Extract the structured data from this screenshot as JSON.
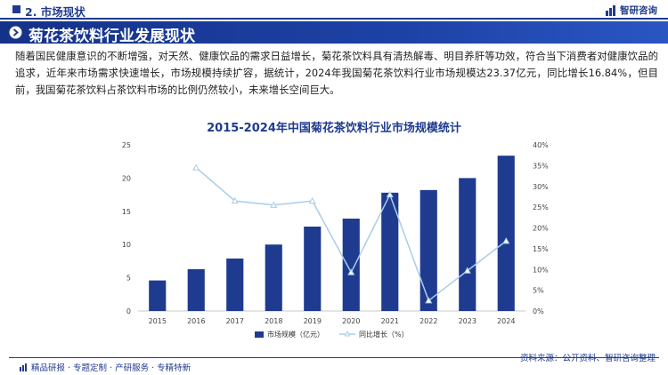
{
  "header": {
    "section": "2. 市场现状",
    "logo_text": "智研咨询"
  },
  "banner": {
    "title": "菊花茶饮料行业发展现状"
  },
  "paragraph": "随着国民健康意识的不断增强，对天然、健康饮品的需求日益增长，菊花茶饮料具有清热解毒、明目养肝等功效，符合当下消费者对健康饮品的追求，近年来市场需求快速增长，市场规模持续扩容，据统计，2024年我国菊花茶饮料行业市场规模达23.37亿元，同比增长16.84%，但目前，我国菊花茶饮料占茶饮料市场的比例仍然较小，未来增长空间巨大。",
  "chart_data": {
    "type": "bar",
    "title": "2015-2024年中国菊花茶饮料行业市场规模统计",
    "categories": [
      "2015",
      "2016",
      "2017",
      "2018",
      "2019",
      "2020",
      "2021",
      "2022",
      "2023",
      "2024"
    ],
    "series": [
      {
        "name": "市场规模（亿元）",
        "type": "bar",
        "axis": "left",
        "values": [
          4.6,
          6.3,
          7.9,
          10.0,
          12.7,
          13.9,
          17.8,
          18.2,
          20.0,
          23.37
        ]
      },
      {
        "name": "同比增长（%）",
        "type": "line",
        "axis": "right",
        "values": [
          null,
          34.5,
          26.5,
          25.5,
          26.5,
          9.3,
          28.0,
          2.5,
          9.7,
          16.84
        ]
      }
    ],
    "y_left": {
      "min": 0,
      "max": 25,
      "ticks": [
        "0",
        "5",
        "10",
        "15",
        "20",
        "25"
      ]
    },
    "y_right": {
      "min": 0,
      "max": 40,
      "ticks": [
        "0%",
        "5%",
        "10%",
        "15%",
        "20%",
        "25%",
        "30%",
        "35%",
        "40%"
      ]
    },
    "grid": false,
    "legend_position": "bottom",
    "colors": {
      "bar": "#1f3b8f",
      "line": "#a9cde8"
    }
  },
  "footer": {
    "tags": "精品研报 · 专题定制 · 产研服务 · 专精特新",
    "source": "资料来源：公开资料、智研咨询整理"
  }
}
